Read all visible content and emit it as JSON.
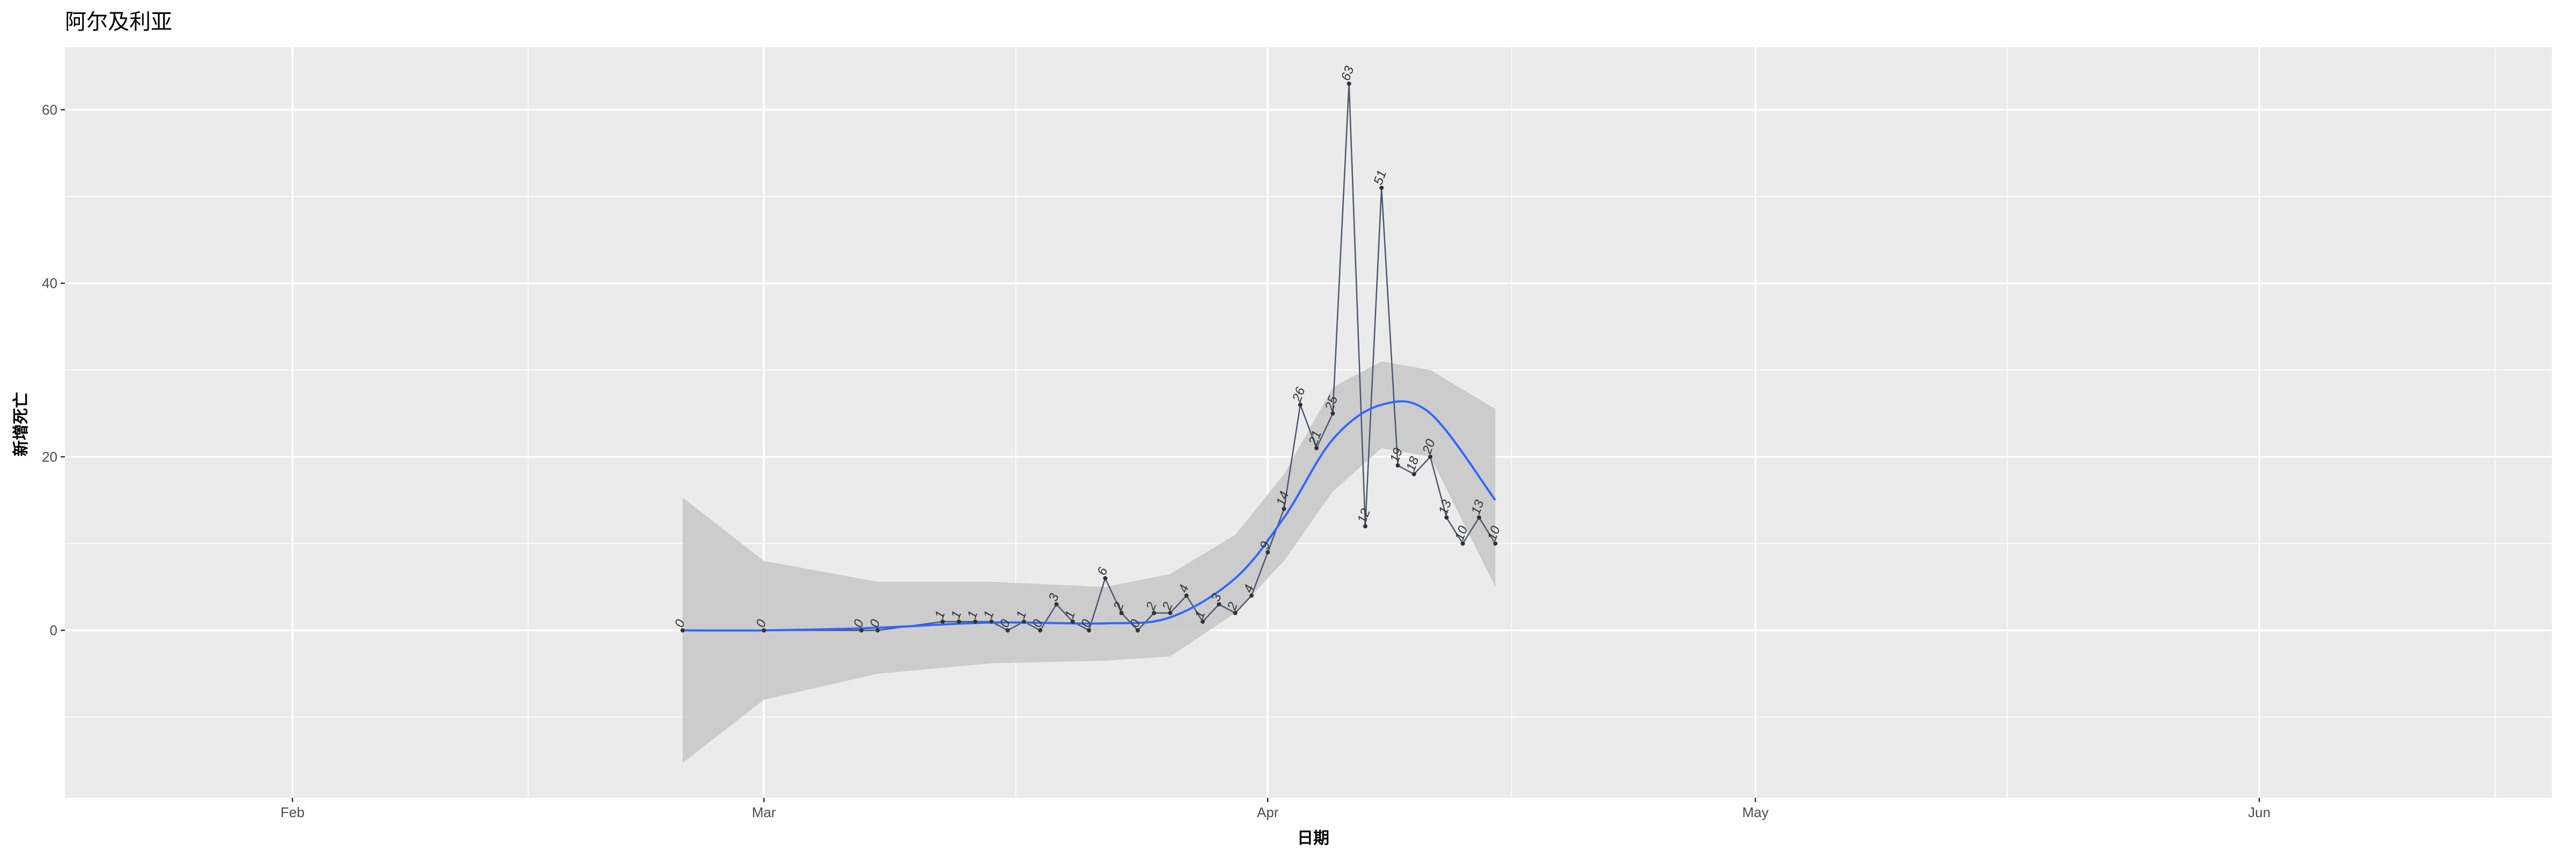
{
  "chart_data": {
    "type": "line",
    "title": "阿尔及利亚",
    "xlabel": "日期",
    "ylabel": "新增死亡",
    "x_tick_labels": [
      "Feb",
      "Mar",
      "Apr",
      "May",
      "Jun"
    ],
    "x_ticks": [
      "2020-02-01",
      "2020-03-01",
      "2020-04-01",
      "2020-05-01",
      "2020-06-01"
    ],
    "y_tick_labels": [
      "0",
      "20",
      "40",
      "60"
    ],
    "y_ticks": [
      0,
      20,
      40,
      60
    ],
    "xlim": [
      "2020-01-18",
      "2020-06-19"
    ],
    "ylim": [
      -19.3,
      67.2
    ],
    "grid": true,
    "series": [
      {
        "x": [
          "2020-02-25",
          "2020-03-01",
          "2020-03-07",
          "2020-03-08",
          "2020-03-12",
          "2020-03-13",
          "2020-03-14",
          "2020-03-15",
          "2020-03-16",
          "2020-03-17",
          "2020-03-18",
          "2020-03-19",
          "2020-03-20",
          "2020-03-21",
          "2020-03-22",
          "2020-03-23",
          "2020-03-24",
          "2020-03-25",
          "2020-03-26",
          "2020-03-27",
          "2020-03-28",
          "2020-03-29",
          "2020-03-30",
          "2020-03-31",
          "2020-04-01",
          "2020-04-02",
          "2020-04-03",
          "2020-04-04",
          "2020-04-05",
          "2020-04-06",
          "2020-04-07",
          "2020-04-08",
          "2020-04-09",
          "2020-04-10",
          "2020-04-11",
          "2020-04-12",
          "2020-04-13",
          "2020-04-14",
          "2020-04-15"
        ],
        "values": [
          0,
          0,
          0,
          0,
          1,
          1,
          1,
          1,
          0,
          1,
          0,
          3,
          1,
          0,
          6,
          2,
          0,
          2,
          2,
          4,
          1,
          3,
          2,
          4,
          9,
          14,
          26,
          21,
          25,
          63,
          12,
          51,
          19,
          18,
          20,
          13,
          10,
          13,
          10
        ],
        "labels": [
          "0",
          "0",
          "0",
          "0",
          "1",
          "1",
          "1",
          "1",
          "0",
          "1",
          "0",
          "3",
          "1",
          "0",
          "6",
          "2",
          "0",
          "2",
          "2",
          "4",
          "1",
          "3",
          "2",
          "4",
          "9",
          "14",
          "26",
          "21",
          "25",
          "63",
          "12",
          "51",
          "19",
          "18",
          "20",
          "13",
          "10",
          "13",
          "10"
        ]
      }
    ],
    "smooth": {
      "x": [
        "2020-02-25",
        "2020-03-01",
        "2020-03-08",
        "2020-03-15",
        "2020-03-22",
        "2020-03-26",
        "2020-03-30",
        "2020-04-02",
        "2020-04-05",
        "2020-04-08",
        "2020-04-11",
        "2020-04-15"
      ],
      "fit": [
        0,
        0,
        0.3,
        0.9,
        0.8,
        1.5,
        6,
        13,
        22,
        26,
        25,
        15
      ],
      "lower": [
        -15.3,
        -8,
        -5,
        -3.8,
        -3.5,
        -3,
        2,
        8,
        16,
        21,
        20,
        5
      ],
      "upper": [
        15.3,
        8,
        5.6,
        5.6,
        5,
        6.5,
        11,
        18,
        28,
        31,
        30,
        25.5
      ]
    },
    "colors": {
      "panel": "#ebebeb",
      "grid": "#ffffff",
      "line": "#4a5870",
      "point": "#333333",
      "smooth": "#3366ff",
      "ribbon": "#c9c9c9"
    }
  }
}
